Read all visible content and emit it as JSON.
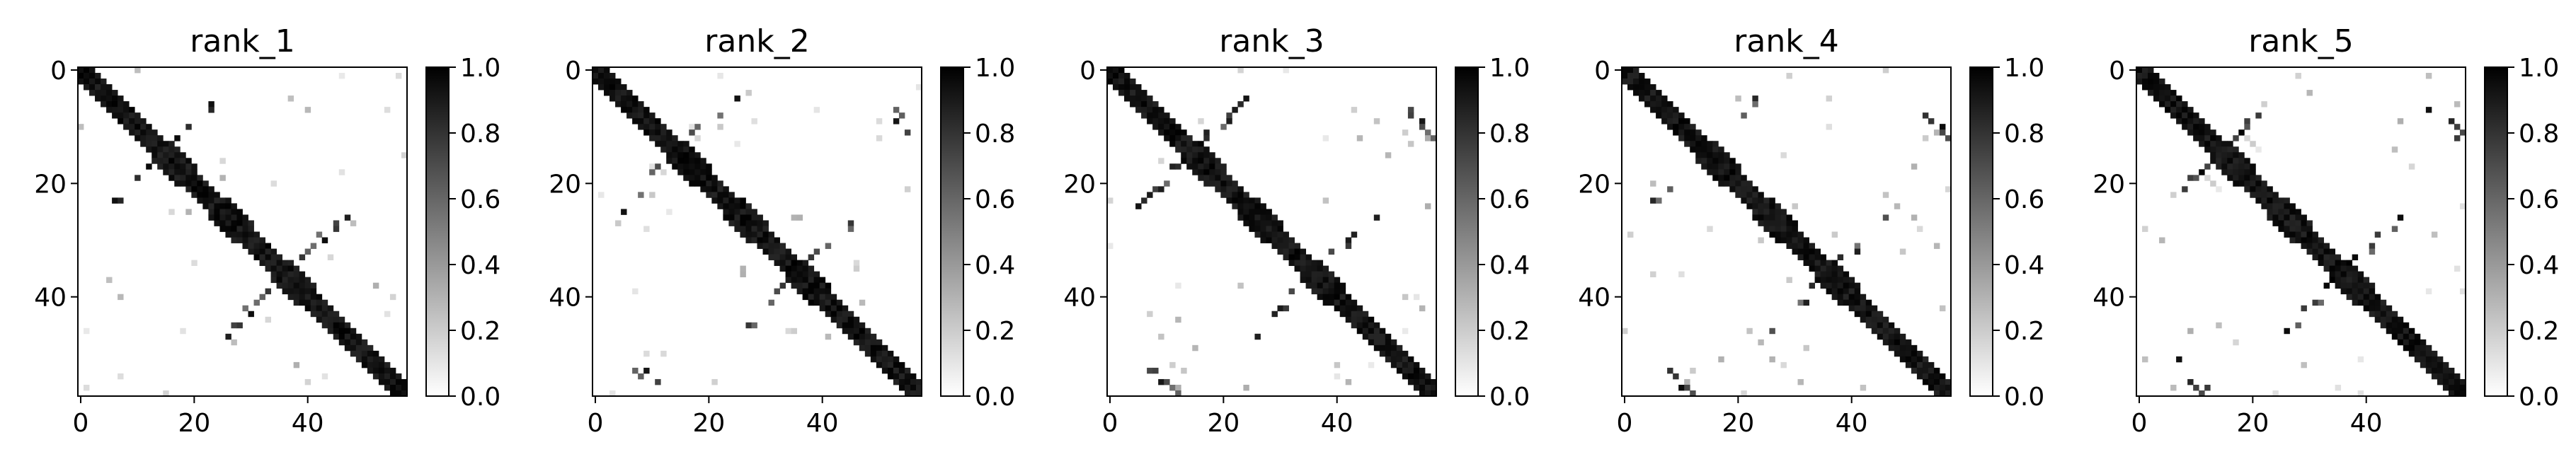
{
  "chart_data": {
    "type": "heatmap",
    "colormap": "gray_r",
    "value_range": [
      0.0,
      1.0
    ],
    "matrix_size": 58,
    "axis_ticks": [
      "0",
      "20",
      "40"
    ],
    "colorbar_ticks": [
      "0.0",
      "0.2",
      "0.4",
      "0.6",
      "0.8",
      "1.0"
    ],
    "panels": [
      {
        "title": "rank_1"
      },
      {
        "title": "rank_2"
      },
      {
        "title": "rank_3"
      },
      {
        "title": "rank_4"
      },
      {
        "title": "rank_5"
      }
    ],
    "structure": {
      "diagonal_band": "values near 1.0 (black) along the main diagonal, width ~2-4 cells",
      "off_diagonal": "two sparse lines of high-contact cells roughly parallel to the anti-diagonal direction, symmetric about the diagonal",
      "background": 0.0
    }
  }
}
